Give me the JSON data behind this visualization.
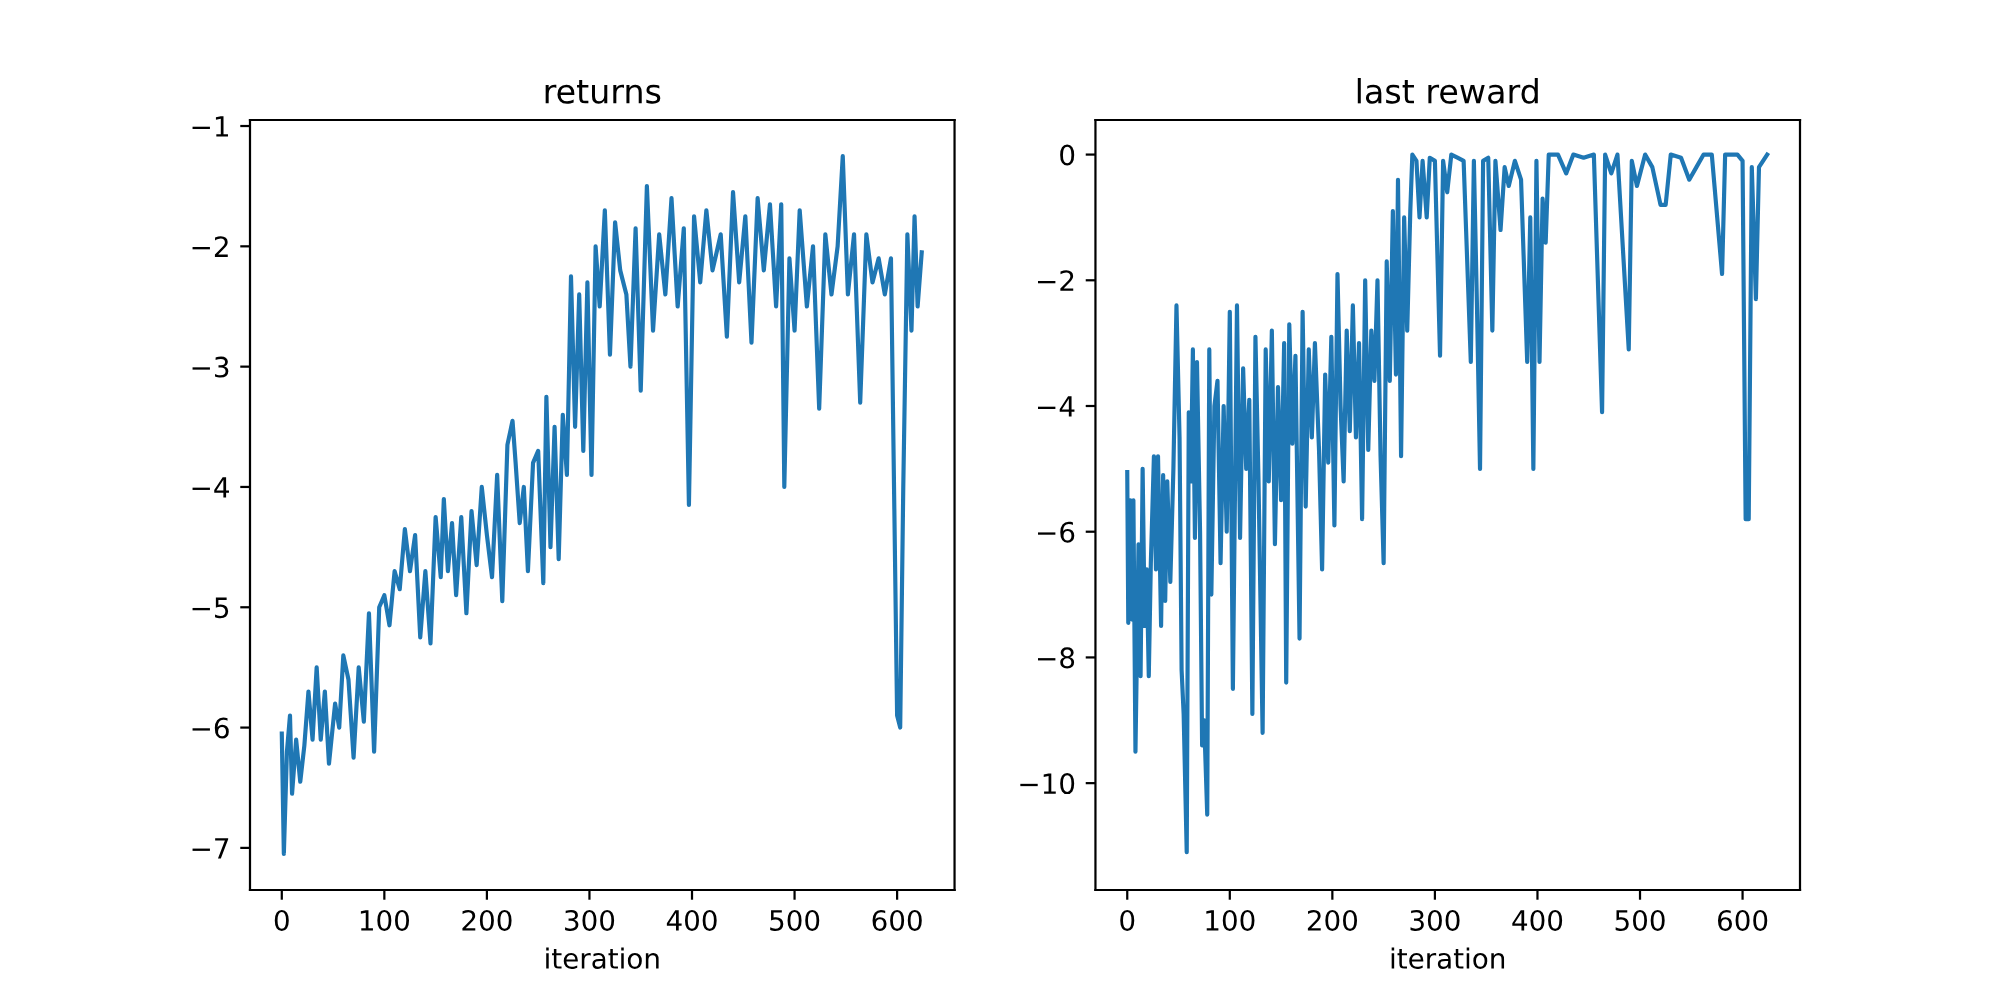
{
  "chart_data": [
    {
      "type": "line",
      "title": "returns",
      "xlabel": "iteration",
      "xlim": [
        -31,
        656
      ],
      "ylim": [
        -7.35,
        -0.95
      ],
      "xticks": [
        0,
        100,
        200,
        300,
        400,
        500,
        600
      ],
      "yticks": [
        {
          "value": -7,
          "label": "−7"
        },
        {
          "value": -6,
          "label": "−6"
        },
        {
          "value": -5,
          "label": "−5"
        },
        {
          "value": -4,
          "label": "−4"
        },
        {
          "value": -3,
          "label": "−3"
        },
        {
          "value": -2,
          "label": "−2"
        },
        {
          "value": -1,
          "label": "−1"
        }
      ],
      "series": [
        {
          "color": "#1f77b4",
          "x": [
            0,
            2,
            5,
            8,
            10,
            14,
            18,
            22,
            26,
            30,
            34,
            38,
            42,
            46,
            52,
            56,
            60,
            65,
            70,
            75,
            80,
            85,
            90,
            95,
            100,
            105,
            110,
            115,
            120,
            125,
            130,
            135,
            140,
            145,
            150,
            155,
            158,
            162,
            166,
            170,
            175,
            180,
            185,
            190,
            195,
            200,
            205,
            210,
            215,
            220,
            225,
            228,
            232,
            236,
            240,
            245,
            250,
            255,
            258,
            262,
            266,
            270,
            274,
            278,
            282,
            286,
            290,
            294,
            298,
            302,
            306,
            310,
            315,
            320,
            325,
            330,
            336,
            340,
            345,
            350,
            356,
            362,
            368,
            374,
            380,
            386,
            392,
            397,
            402,
            408,
            414,
            420,
            428,
            434,
            440,
            446,
            452,
            458,
            464,
            470,
            476,
            482,
            487,
            490,
            495,
            500,
            505,
            512,
            518,
            524,
            530,
            536,
            542,
            547,
            552,
            558,
            564,
            570,
            576,
            582,
            588,
            594,
            600,
            603,
            606,
            610,
            614,
            617,
            620,
            624
          ],
          "values": [
            -6.05,
            -7.05,
            -6.2,
            -5.9,
            -6.55,
            -6.1,
            -6.45,
            -6.15,
            -5.7,
            -6.1,
            -5.5,
            -6.1,
            -5.7,
            -6.3,
            -5.8,
            -6.0,
            -5.4,
            -5.6,
            -6.25,
            -5.5,
            -5.95,
            -5.05,
            -6.2,
            -5.0,
            -4.9,
            -5.15,
            -4.7,
            -4.85,
            -4.35,
            -4.7,
            -4.4,
            -5.25,
            -4.7,
            -5.3,
            -4.25,
            -4.75,
            -4.1,
            -4.7,
            -4.3,
            -4.9,
            -4.25,
            -5.05,
            -4.2,
            -4.65,
            -4.0,
            -4.4,
            -4.75,
            -3.9,
            -4.95,
            -3.65,
            -3.45,
            -3.8,
            -4.3,
            -4.0,
            -4.7,
            -3.8,
            -3.7,
            -4.8,
            -3.25,
            -4.5,
            -3.5,
            -4.6,
            -3.4,
            -3.9,
            -2.25,
            -3.5,
            -2.4,
            -3.7,
            -2.3,
            -3.9,
            -2.0,
            -2.5,
            -1.7,
            -2.9,
            -1.8,
            -2.2,
            -2.4,
            -3.0,
            -1.85,
            -3.2,
            -1.5,
            -2.7,
            -1.9,
            -2.4,
            -1.6,
            -2.5,
            -1.85,
            -4.15,
            -1.75,
            -2.3,
            -1.7,
            -2.2,
            -1.9,
            -2.75,
            -1.55,
            -2.3,
            -1.75,
            -2.8,
            -1.6,
            -2.2,
            -1.65,
            -2.5,
            -1.65,
            -4.0,
            -2.1,
            -2.7,
            -1.7,
            -2.5,
            -2.0,
            -3.35,
            -1.9,
            -2.4,
            -2.0,
            -1.25,
            -2.4,
            -1.9,
            -3.3,
            -1.9,
            -2.3,
            -2.1,
            -2.4,
            -2.1,
            -5.9,
            -6.0,
            -4.0,
            -1.9,
            -2.7,
            -1.75,
            -2.5,
            -2.05
          ]
        }
      ]
    },
    {
      "type": "line",
      "title": "last reward",
      "xlabel": "iteration",
      "xlim": [
        -31,
        656
      ],
      "ylim": [
        -11.7,
        0.55
      ],
      "xticks": [
        0,
        100,
        200,
        300,
        400,
        500,
        600
      ],
      "yticks": [
        {
          "value": -10,
          "label": "−10"
        },
        {
          "value": -8,
          "label": "−8"
        },
        {
          "value": -6,
          "label": "−6"
        },
        {
          "value": -4,
          "label": "−4"
        },
        {
          "value": -2,
          "label": "−2"
        },
        0
      ],
      "series": [
        {
          "color": "#1f77b4",
          "x": [
            0,
            1,
            3,
            5,
            6,
            8,
            11,
            13,
            15,
            17,
            19,
            21,
            23,
            26,
            28,
            30,
            33,
            35,
            37,
            39,
            42,
            45,
            48,
            51,
            53,
            55,
            58,
            60,
            62,
            64,
            66,
            68,
            71,
            73,
            75,
            78,
            80,
            82,
            85,
            88,
            91,
            94,
            97,
            100,
            103,
            107,
            110,
            113,
            116,
            119,
            122,
            125,
            128,
            132,
            135,
            138,
            141,
            144,
            147,
            150,
            153,
            155,
            158,
            161,
            164,
            168,
            171,
            174,
            177,
            180,
            183,
            187,
            190,
            193,
            196,
            199,
            202,
            205,
            208,
            211,
            214,
            217,
            220,
            223,
            226,
            229,
            232,
            235,
            238,
            241,
            244,
            247,
            250,
            253,
            256,
            259,
            262,
            264,
            267,
            270,
            273,
            276,
            278,
            282,
            285,
            288,
            292,
            295,
            300,
            305,
            308,
            312,
            316,
            322,
            328,
            335,
            338,
            341,
            344,
            347,
            352,
            356,
            359,
            364,
            368,
            372,
            378,
            384,
            390,
            393,
            396,
            399,
            402,
            405,
            408,
            411,
            420,
            428,
            435,
            445,
            455,
            463,
            466,
            472,
            478,
            489,
            492,
            497,
            505,
            512,
            520,
            525,
            530,
            540,
            548,
            555,
            562,
            570,
            580,
            583,
            595,
            600,
            603,
            606,
            609,
            613,
            616,
            620,
            624
          ],
          "values": [
            -5.05,
            -7.45,
            -5.5,
            -7.4,
            -5.5,
            -9.5,
            -6.2,
            -8.3,
            -5.0,
            -7.5,
            -6.6,
            -8.3,
            -6.5,
            -4.8,
            -6.6,
            -4.8,
            -7.5,
            -5.1,
            -7.1,
            -5.2,
            -6.8,
            -5.0,
            -2.4,
            -4.5,
            -8.2,
            -8.9,
            -11.1,
            -4.1,
            -5.2,
            -3.1,
            -6.1,
            -3.3,
            -6.0,
            -9.4,
            -9.0,
            -10.5,
            -3.1,
            -7.0,
            -4.0,
            -3.6,
            -6.5,
            -4.0,
            -6.0,
            -2.5,
            -8.5,
            -2.4,
            -6.1,
            -3.4,
            -5.0,
            -3.9,
            -8.9,
            -2.9,
            -5.2,
            -9.2,
            -3.1,
            -5.2,
            -2.8,
            -6.2,
            -3.7,
            -5.5,
            -3.0,
            -8.4,
            -2.7,
            -4.6,
            -3.2,
            -7.7,
            -2.5,
            -5.6,
            -3.1,
            -4.5,
            -3.0,
            -4.7,
            -6.6,
            -3.5,
            -4.9,
            -2.9,
            -5.9,
            -1.9,
            -4.0,
            -5.2,
            -2.8,
            -4.4,
            -2.4,
            -4.5,
            -3.0,
            -5.8,
            -2.0,
            -4.7,
            -2.8,
            -3.6,
            -2.0,
            -4.8,
            -6.5,
            -1.7,
            -3.6,
            -0.9,
            -3.5,
            -0.4,
            -4.8,
            -1.0,
            -2.8,
            -0.9,
            0.0,
            -0.1,
            -1.0,
            -0.1,
            -1.0,
            -0.05,
            -0.1,
            -3.2,
            -0.1,
            -0.6,
            0.0,
            -0.05,
            -0.1,
            -3.3,
            -0.1,
            -2.4,
            -5.0,
            -0.1,
            -0.05,
            -2.8,
            -0.1,
            -1.2,
            -0.2,
            -0.5,
            -0.1,
            -0.4,
            -3.3,
            -1.0,
            -5.0,
            -0.1,
            -3.3,
            -0.7,
            -1.4,
            0.0,
            0.0,
            -0.3,
            0.0,
            -0.05,
            0.0,
            -4.1,
            0.0,
            -0.3,
            0.0,
            -3.1,
            -0.1,
            -0.5,
            0.0,
            -0.2,
            -0.8,
            -0.8,
            0.0,
            -0.05,
            -0.4,
            -0.2,
            0.0,
            0.0,
            -1.9,
            0.0,
            0.0,
            -0.1,
            -5.8,
            -5.8,
            -0.2,
            -2.3,
            -0.2,
            -0.1,
            0.0
          ]
        }
      ]
    }
  ]
}
